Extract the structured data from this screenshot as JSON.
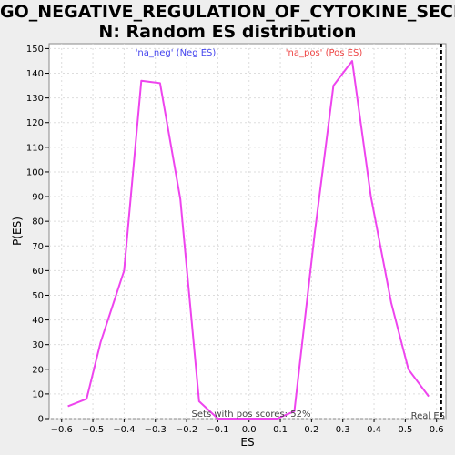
{
  "chart_data": {
    "type": "line",
    "title_lines": [
      "GO_NEGATIVE_REGULATION_OF_CYTOKINE_SECRETIO",
      "N: Random ES distribution"
    ],
    "xlabel": "ES",
    "ylabel": "P(ES)",
    "xlim": [
      -0.64,
      0.63
    ],
    "ylim": [
      0,
      152
    ],
    "xticks": [
      -0.6,
      -0.5,
      -0.4,
      -0.3,
      -0.2,
      -0.1,
      0.0,
      0.1,
      0.2,
      0.3,
      0.4,
      0.5,
      0.6
    ],
    "xtick_labels": [
      "−0.6",
      "−0.5",
      "−0.4",
      "−0.3",
      "−0.2",
      "−0.1",
      "0.0",
      "0.1",
      "0.2",
      "0.3",
      "0.4",
      "0.5",
      "0.6"
    ],
    "yticks": [
      0,
      10,
      20,
      30,
      40,
      50,
      60,
      70,
      80,
      90,
      100,
      110,
      120,
      130,
      140,
      150
    ],
    "grid": true,
    "series": [
      {
        "color": "#ee44ee",
        "x": [
          -0.58,
          -0.52,
          -0.475,
          -0.4,
          -0.345,
          -0.285,
          -0.22,
          -0.16,
          -0.1,
          0.09,
          0.145,
          0.21,
          0.27,
          0.33,
          0.39,
          0.455,
          0.51,
          0.575
        ],
        "y": [
          5,
          8,
          31,
          60,
          137,
          136,
          89,
          7,
          0,
          0,
          3,
          75,
          135,
          145,
          90,
          47,
          20,
          9
        ]
      }
    ],
    "real_es": 0.615,
    "real_es_label": "Real ES",
    "annotations": {
      "neg": {
        "text": "'na_neg' (Neg ES)",
        "color": "#4444ee"
      },
      "pos": {
        "text": "'na_pos' (Pos ES)",
        "color": "#ee4444"
      },
      "pos_scores": {
        "text": "Sets with pos scores: 52%",
        "color": "#444444"
      }
    }
  }
}
